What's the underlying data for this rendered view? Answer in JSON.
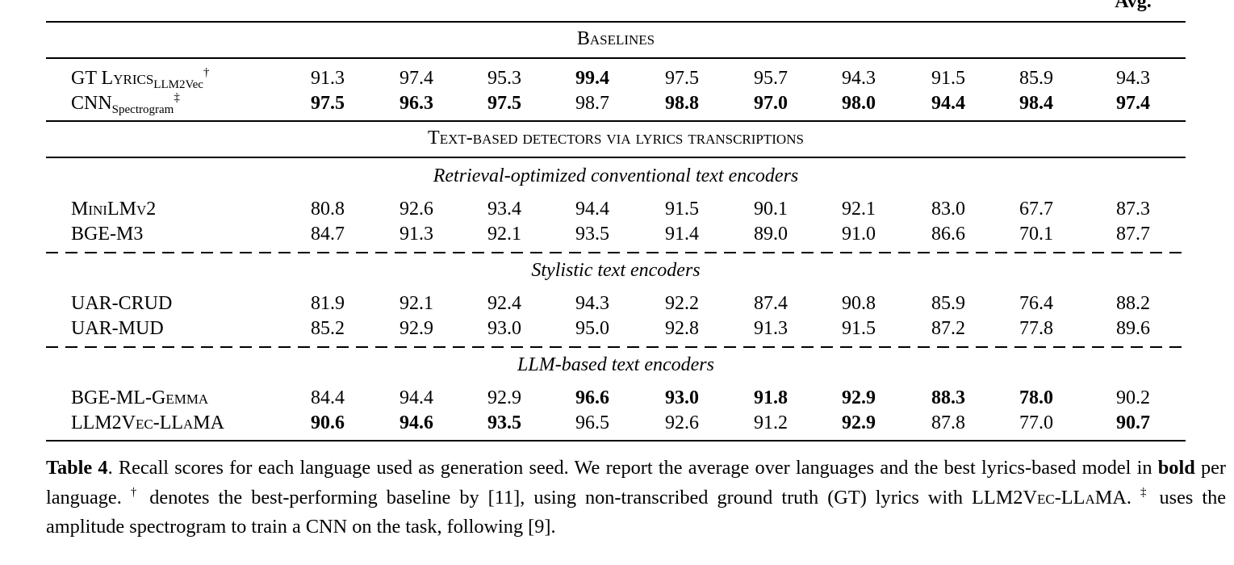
{
  "table": {
    "avg_header": "Avg.",
    "sections": [
      {
        "title": "Baselines",
        "groups": [
          {
            "rows": [
              {
                "name": "GT Lyrics",
                "sub": "LLM2Vec",
                "sup": "†",
                "values": [
                  "91.3",
                  "97.4",
                  "95.3",
                  "99.4",
                  "97.5",
                  "95.7",
                  "94.3",
                  "91.5",
                  "85.9",
                  "94.3"
                ],
                "bold": [
                  false,
                  false,
                  false,
                  true,
                  false,
                  false,
                  false,
                  false,
                  false,
                  false
                ]
              },
              {
                "name": "CNN",
                "sub": "Spectrogram",
                "sup": "‡",
                "values": [
                  "97.5",
                  "96.3",
                  "97.5",
                  "98.7",
                  "98.8",
                  "97.0",
                  "98.0",
                  "94.4",
                  "98.4",
                  "97.4"
                ],
                "bold": [
                  true,
                  true,
                  true,
                  false,
                  true,
                  true,
                  true,
                  true,
                  true,
                  true
                ]
              }
            ]
          }
        ]
      },
      {
        "title": "Text-based detectors via lyrics transcriptions",
        "groups": [
          {
            "subtitle": "Retrieval-optimized conventional text encoders",
            "rows": [
              {
                "name": "MiniLMv2",
                "values": [
                  "80.8",
                  "92.6",
                  "93.4",
                  "94.4",
                  "91.5",
                  "90.1",
                  "92.1",
                  "83.0",
                  "67.7",
                  "87.3"
                ],
                "bold": [
                  false,
                  false,
                  false,
                  false,
                  false,
                  false,
                  false,
                  false,
                  false,
                  false
                ]
              },
              {
                "name": "BGE-M3",
                "values": [
                  "84.7",
                  "91.3",
                  "92.1",
                  "93.5",
                  "91.4",
                  "89.0",
                  "91.0",
                  "86.6",
                  "70.1",
                  "87.7"
                ],
                "bold": [
                  false,
                  false,
                  false,
                  false,
                  false,
                  false,
                  false,
                  false,
                  false,
                  false
                ]
              }
            ]
          },
          {
            "subtitle": "Stylistic text encoders",
            "rows": [
              {
                "name": "UAR-CRUD",
                "values": [
                  "81.9",
                  "92.1",
                  "92.4",
                  "94.3",
                  "92.2",
                  "87.4",
                  "90.8",
                  "85.9",
                  "76.4",
                  "88.2"
                ],
                "bold": [
                  false,
                  false,
                  false,
                  false,
                  false,
                  false,
                  false,
                  false,
                  false,
                  false
                ]
              },
              {
                "name": "UAR-MUD",
                "values": [
                  "85.2",
                  "92.9",
                  "93.0",
                  "95.0",
                  "92.8",
                  "91.3",
                  "91.5",
                  "87.2",
                  "77.8",
                  "89.6"
                ],
                "bold": [
                  false,
                  false,
                  false,
                  false,
                  false,
                  false,
                  false,
                  false,
                  false,
                  false
                ]
              }
            ]
          },
          {
            "subtitle": "LLM-based text encoders",
            "rows": [
              {
                "name": "BGE-ML-Gemma",
                "values": [
                  "84.4",
                  "94.4",
                  "92.9",
                  "96.6",
                  "93.0",
                  "91.8",
                  "92.9",
                  "88.3",
                  "78.0",
                  "90.2"
                ],
                "bold": [
                  false,
                  false,
                  false,
                  true,
                  true,
                  true,
                  true,
                  true,
                  true,
                  false
                ]
              },
              {
                "name": "LLM2Vec-LLaMA",
                "values": [
                  "90.6",
                  "94.6",
                  "93.5",
                  "96.5",
                  "92.6",
                  "91.2",
                  "92.9",
                  "87.8",
                  "77.0",
                  "90.7"
                ],
                "bold": [
                  true,
                  true,
                  true,
                  false,
                  false,
                  false,
                  true,
                  false,
                  false,
                  true
                ]
              }
            ]
          }
        ]
      }
    ]
  },
  "caption": [
    {
      "text": "Table 4",
      "style": "bold"
    },
    {
      "text": ".  Recall scores for each language used as generation seed.  We report the average over languages and the best lyrics-based model in "
    },
    {
      "text": "bold",
      "style": "bold"
    },
    {
      "text": " per language.  "
    },
    {
      "text": "†",
      "style": "sup"
    },
    {
      "text": " denotes the best-performing baseline by [11], using non-transcribed ground truth (GT) lyrics with "
    },
    {
      "text": "LLM2Vec-LLaMA",
      "style": "sc"
    },
    {
      "text": ".  "
    },
    {
      "text": "‡",
      "style": "sup"
    },
    {
      "text": " uses the amplitude spectrogram to train a CNN on the task, following [9]."
    }
  ]
}
